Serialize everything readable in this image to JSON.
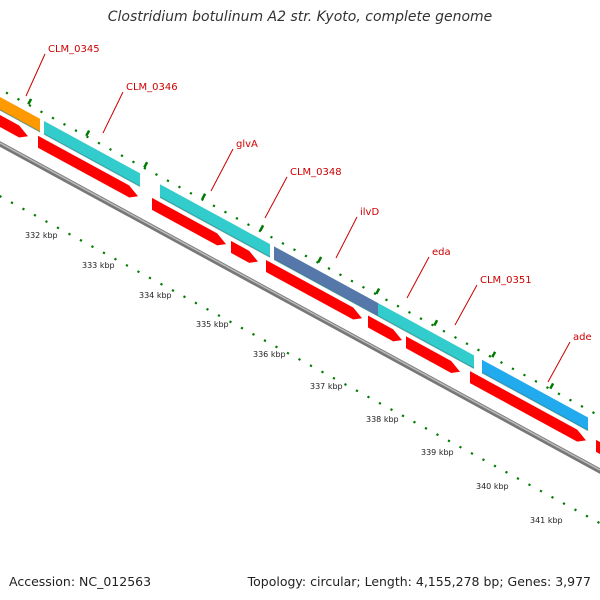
{
  "title": "Clostridium botulinum A2 str. Kyoto, complete genome",
  "footer": {
    "accession": "Accession: NC_012563",
    "summary": "Topology: circular; Length: 4,155,278 bp; Genes: 3,977"
  },
  "colors": {
    "forward_cds": "#ff0000",
    "backbone": "#999999",
    "tick": "#007a00",
    "label": "#cc0000"
  },
  "genes": [
    {
      "label": "CLM_0345",
      "color": "#ff9900"
    },
    {
      "label": "CLM_0346",
      "color": "#33cccc"
    },
    {
      "label": "glvA",
      "color": "#33cccc"
    },
    {
      "label": "CLM_0348",
      "color": "#33cccc"
    },
    {
      "label": "ilvD",
      "color": "#5577aa"
    },
    {
      "label": "eda",
      "color": "#33cccc"
    },
    {
      "label": "CLM_0351",
      "color": "#33cccc"
    },
    {
      "label": "ade",
      "color": "#22aaee"
    }
  ],
  "scale_ticks": [
    "332 kbp",
    "333 kbp",
    "334 kbp",
    "335 kbp",
    "336 kbp",
    "337 kbp",
    "338 kbp",
    "339 kbp",
    "340 kbp",
    "341 kbp"
  ]
}
